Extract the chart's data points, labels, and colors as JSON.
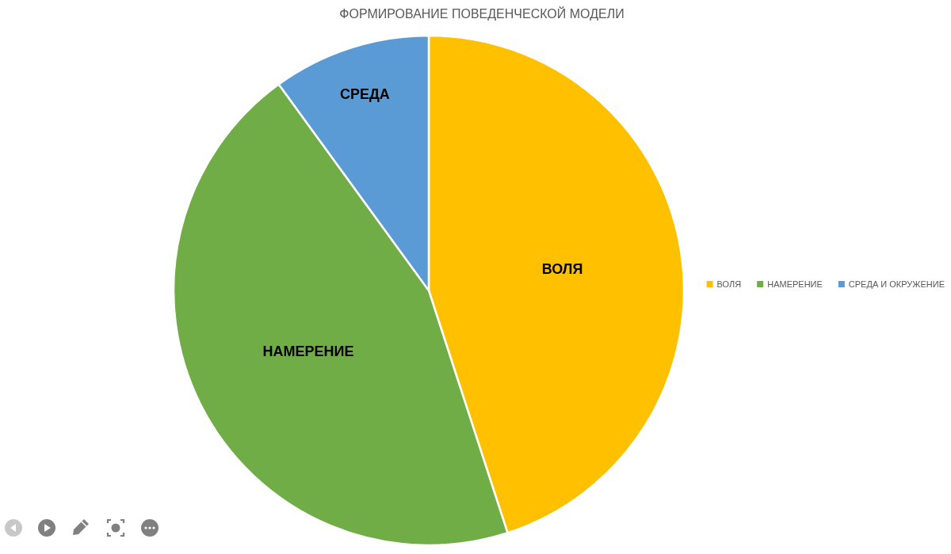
{
  "chart_data": {
    "type": "pie",
    "title": "ФОРМИРОВАНИЕ ПОВЕДЕНЧЕСКОЙ МОДЕЛИ",
    "categories": [
      "ВОЛЯ",
      "НАМЕРЕНИЕ",
      "СРЕДА И ОКРУЖЕНИЕ"
    ],
    "values": [
      45,
      45,
      10
    ],
    "colors": [
      "#ffc000",
      "#70ad47",
      "#5b9bd5"
    ],
    "value_labels": [
      "ВОЛЯ",
      "НАМЕРЕНИЕ",
      "СРЕДА"
    ],
    "legend": "right"
  }
}
